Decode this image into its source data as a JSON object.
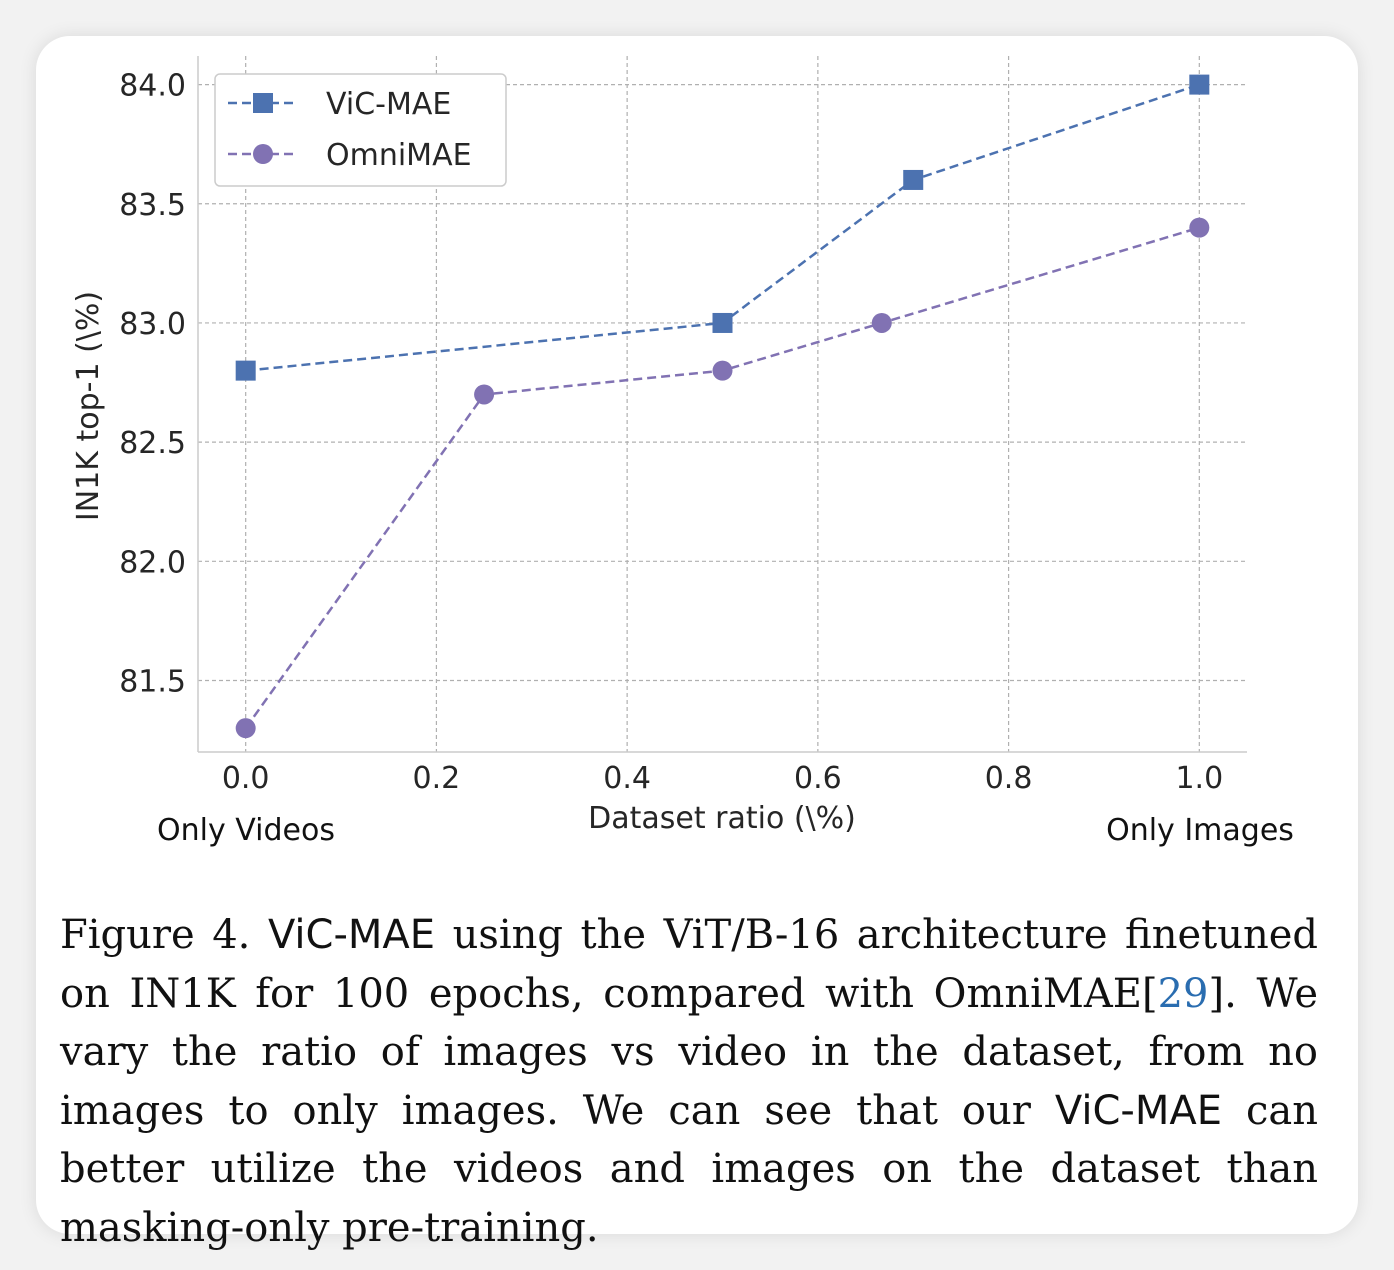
{
  "chart_data": {
    "type": "line",
    "xlabel": "Dataset ratio (\\%)",
    "ylabel": "IN1K top-1 (\\%)",
    "xlim": [
      -0.05,
      1.05
    ],
    "ylim": [
      81.2,
      84.12
    ],
    "xticks": [
      0.0,
      0.2,
      0.4,
      0.6,
      0.8,
      1.0
    ],
    "xtick_labels": [
      "0.0",
      "0.2",
      "0.4",
      "0.6",
      "0.8",
      "1.0"
    ],
    "yticks": [
      81.5,
      82.0,
      82.5,
      83.0,
      83.5,
      84.0
    ],
    "ytick_labels": [
      "81.5",
      "82.0",
      "82.5",
      "83.0",
      "83.5",
      "84.0"
    ],
    "grid": true,
    "legend_position": "top-left",
    "annotations": {
      "left": "Only Videos",
      "right": "Only Images"
    },
    "series": [
      {
        "name": "ViC-MAE",
        "marker": "square",
        "color": "#4c72b0",
        "x": [
          0.0,
          0.5,
          0.7,
          1.0
        ],
        "y": [
          82.8,
          83.0,
          83.6,
          84.0
        ]
      },
      {
        "name": "OmniMAE",
        "marker": "circle",
        "color": "#8172b3",
        "x": [
          0.0,
          0.25,
          0.5,
          0.667,
          1.0
        ],
        "y": [
          81.3,
          82.7,
          82.8,
          83.0,
          83.4
        ]
      }
    ]
  },
  "caption": {
    "prefix": "Figure 4.",
    "model": "ViC-MAE",
    "part1": "using the ViT/B-16 architecture finetuned on IN1K for 100 epochs, compared with OmniMAE[",
    "citation": "29",
    "part2": "]. We vary the ratio of images vs video in the dataset, from no images to only images. We can see that our",
    "model2": "ViC-MAE",
    "part3": "can better utilize the videos and images on the dataset than masking-only pre-training."
  }
}
